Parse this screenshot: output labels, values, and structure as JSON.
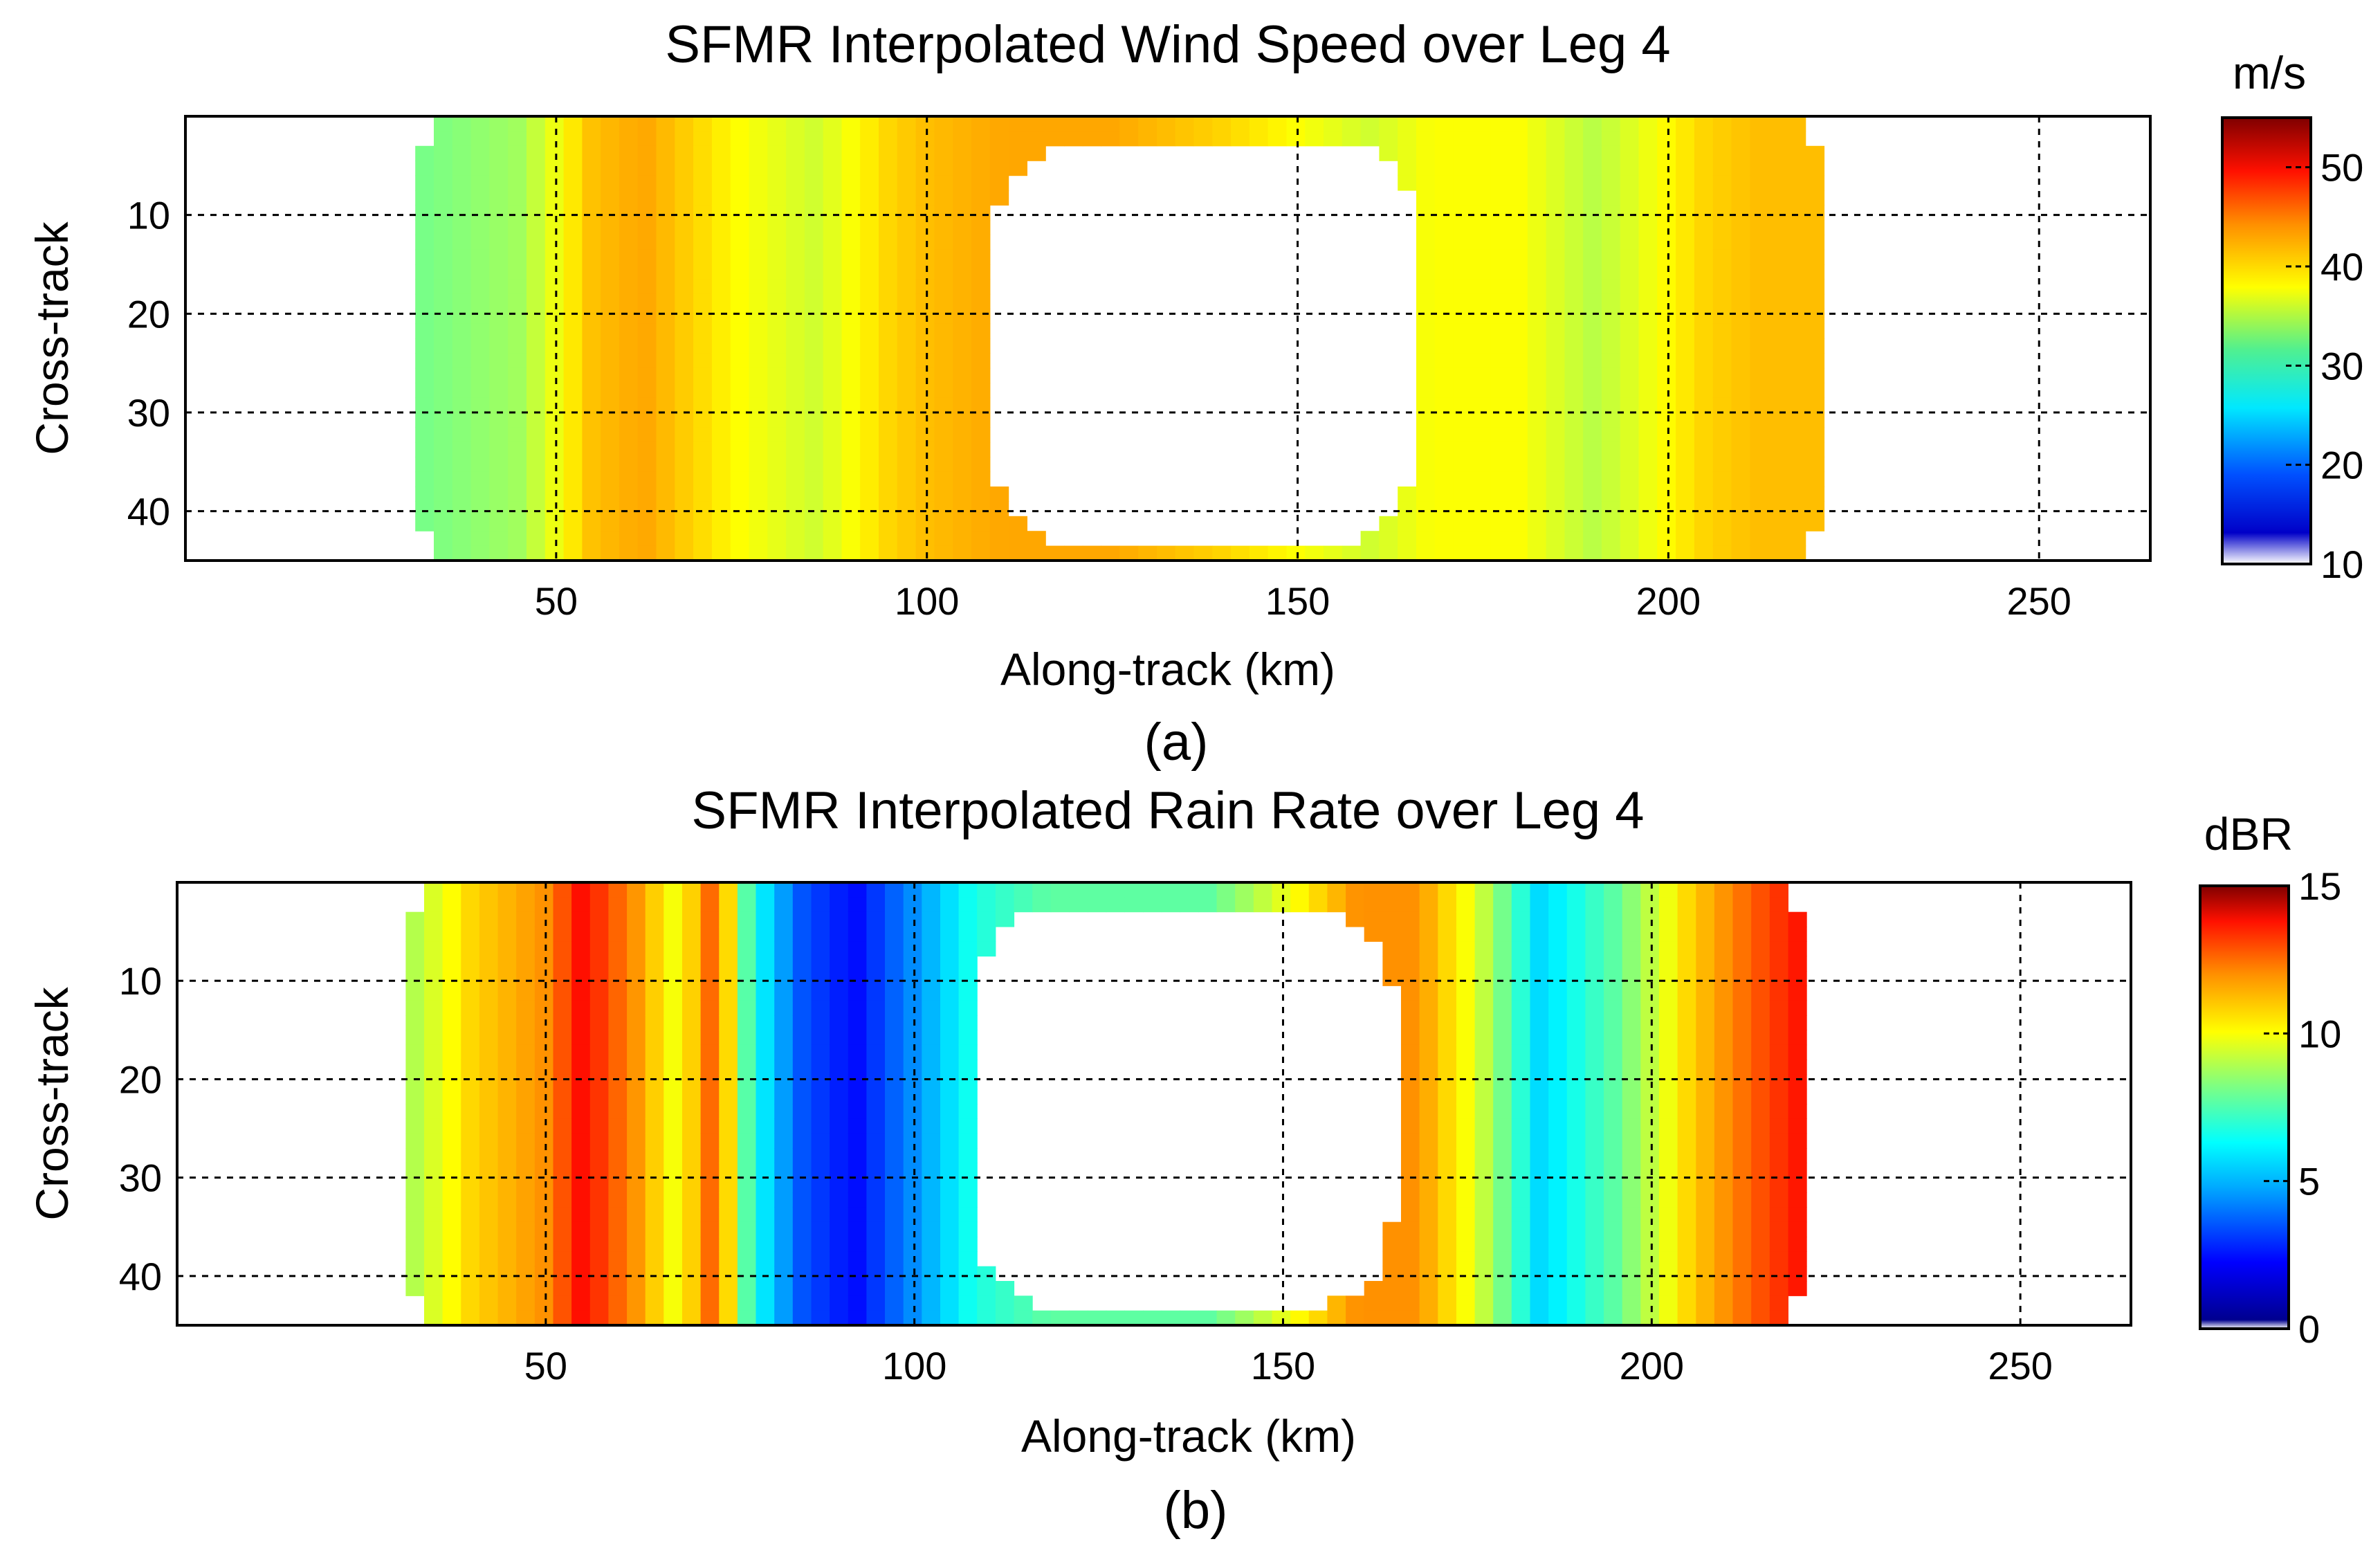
{
  "chart_data": [
    {
      "type": "heatmap",
      "title": "SFMR Interpolated Wind Speed over Leg 4",
      "xlabel": "Along-track (km)",
      "ylabel": "Cross-track",
      "caption": "(a)",
      "xlim": [
        0,
        265
      ],
      "ylim": [
        0,
        45
      ],
      "xticks": [
        "50",
        "100",
        "150",
        "200",
        "250"
      ],
      "yticks": [
        "10",
        "20",
        "30",
        "40"
      ],
      "grid": true,
      "colorbar": {
        "label": "m/s",
        "range": [
          10,
          55
        ],
        "ticks": [
          "50",
          "40",
          "30",
          "20",
          "10"
        ],
        "colormap": "jet"
      },
      "coverage": {
        "x_range_km": [
          31,
          221
        ],
        "eye_x_range_km": [
          109,
          166
        ],
        "eye_y_range": [
          3,
          43
        ]
      },
      "profile": {
        "x_km": [
          31,
          45,
          55,
          62,
          75,
          85,
          95,
          100,
          110,
          125,
          140,
          150,
          160,
          168,
          180,
          190,
          205,
          212,
          221
        ],
        "values": [
          32,
          34,
          41,
          42,
          38,
          36,
          40,
          41,
          42,
          42,
          40,
          38,
          36,
          38,
          38,
          35,
          40,
          41,
          41
        ]
      }
    },
    {
      "type": "heatmap",
      "title": "SFMR Interpolated Rain Rate over Leg 4",
      "xlabel": "Along-track (km)",
      "ylabel": "Cross-track",
      "caption": "(b)",
      "xlim": [
        0,
        265
      ],
      "ylim": [
        0,
        45
      ],
      "xticks": [
        "50",
        "100",
        "150",
        "200",
        "250"
      ],
      "yticks": [
        "10",
        "20",
        "30",
        "40"
      ],
      "grid": true,
      "colorbar": {
        "label": "dBR",
        "range": [
          0,
          15
        ],
        "ticks": [
          "15",
          "10",
          "5",
          "0"
        ],
        "colormap": "jet"
      },
      "coverage": {
        "x_range_km": [
          31,
          221
        ],
        "eye_x_range_km": [
          108,
          165
        ],
        "eye_y_range": [
          3,
          43
        ]
      },
      "profile": {
        "x_km": [
          31,
          40,
          50,
          55,
          62,
          68,
          73,
          78,
          85,
          92,
          100,
          108,
          118,
          140,
          160,
          168,
          176,
          185,
          195,
          205,
          215,
          221
        ],
        "values": [
          8,
          10,
          11,
          13,
          11,
          9,
          12,
          6,
          3,
          2,
          4,
          6,
          7,
          7,
          11,
          11,
          9,
          5,
          7,
          10,
          12,
          13
        ]
      }
    }
  ]
}
